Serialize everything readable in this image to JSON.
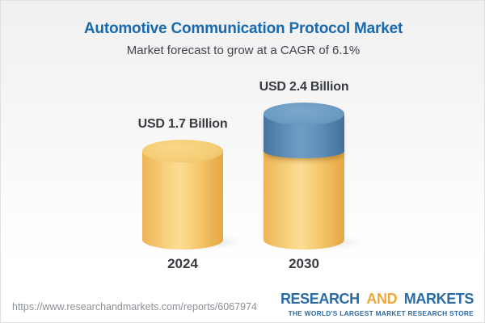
{
  "header": {
    "title": "Automotive Communication Protocol Market",
    "subtitle": "Market forecast to grow at a CAGR of 6.1%"
  },
  "chart_data": {
    "type": "bar",
    "variant": "3d-cylinder",
    "title": "Automotive Communication Protocol Market",
    "subtitle": "Market forecast to grow at a CAGR of 6.1%",
    "categories": [
      "2024",
      "2030"
    ],
    "values": [
      1.7,
      2.4
    ],
    "unit": "USD Billion",
    "value_labels": [
      "USD 1.7 Billion",
      "USD 2.4 Billion"
    ],
    "cagr_percent": 6.1,
    "legend": "none",
    "axes": "none",
    "grid": false,
    "base_color": "#F3C96E",
    "growth_segment": {
      "bar": "2030",
      "value": 0.7,
      "color": "#5E8FBA",
      "meaning": "growth over 2024 base shown as blue top section"
    }
  },
  "footer": {
    "url": "https://www.researchandmarkets.com/reports/6067974",
    "logo": {
      "word1": "RESEARCH",
      "word2": "AND",
      "word3": "MARKETS",
      "tagline": "THE WORLD'S LARGEST MARKET RESEARCH STORE"
    }
  },
  "colors": {
    "title_blue": "#1A6AB0",
    "text_dark": "#383C40",
    "url_gray": "#8C9095",
    "logo_blue": "#2B6BA4",
    "logo_orange": "#F0A73A",
    "cylinder_yellow": "#F3C96E",
    "cylinder_blue": "#5E8FBA"
  }
}
